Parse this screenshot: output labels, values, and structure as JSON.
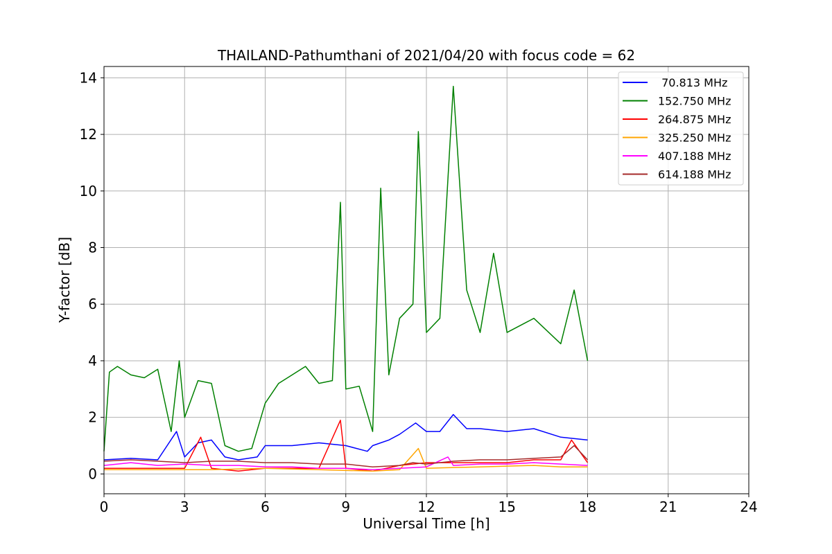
{
  "chart_data": {
    "type": "line",
    "title": "THAILAND-Pathumthani of 2021/04/20 with focus code = 62",
    "xlabel": "Universal Time [h]",
    "ylabel": "Y-factor [dB]",
    "xlim": [
      0,
      24
    ],
    "ylim": [
      -0.7,
      14.4
    ],
    "xticks": [
      0,
      3,
      6,
      9,
      12,
      15,
      18,
      21,
      24
    ],
    "yticks": [
      0,
      2,
      4,
      6,
      8,
      10,
      12,
      14
    ],
    "grid": true,
    "legend_position": "top-right",
    "series": [
      {
        "name": " 70.813 MHz",
        "color": "#0000ff",
        "points": [
          [
            0,
            0.5
          ],
          [
            1,
            0.55
          ],
          [
            2,
            0.5
          ],
          [
            2.7,
            1.5
          ],
          [
            3,
            0.6
          ],
          [
            3.5,
            1.1
          ],
          [
            4,
            1.2
          ],
          [
            4.5,
            0.6
          ],
          [
            5,
            0.5
          ],
          [
            5.7,
            0.6
          ],
          [
            6,
            1.0
          ],
          [
            7,
            1.0
          ],
          [
            8,
            1.1
          ],
          [
            9,
            1.0
          ],
          [
            9.8,
            0.8
          ],
          [
            10,
            1.0
          ],
          [
            10.6,
            1.2
          ],
          [
            11,
            1.4
          ],
          [
            11.6,
            1.8
          ],
          [
            12,
            1.5
          ],
          [
            12.5,
            1.5
          ],
          [
            13,
            2.1
          ],
          [
            13.5,
            1.6
          ],
          [
            14,
            1.6
          ],
          [
            15,
            1.5
          ],
          [
            16,
            1.6
          ],
          [
            17,
            1.3
          ],
          [
            18,
            1.2
          ]
        ]
      },
      {
        "name": "152.750 MHz",
        "color": "#008000",
        "points": [
          [
            0,
            0.8
          ],
          [
            0.2,
            3.6
          ],
          [
            0.5,
            3.8
          ],
          [
            1,
            3.5
          ],
          [
            1.5,
            3.4
          ],
          [
            2,
            3.7
          ],
          [
            2.5,
            1.5
          ],
          [
            2.8,
            4.0
          ],
          [
            3,
            2.0
          ],
          [
            3.5,
            3.3
          ],
          [
            4,
            3.2
          ],
          [
            4.5,
            1.0
          ],
          [
            5,
            0.8
          ],
          [
            5.5,
            0.9
          ],
          [
            6,
            2.5
          ],
          [
            6.5,
            3.2
          ],
          [
            7,
            3.5
          ],
          [
            7.5,
            3.8
          ],
          [
            8,
            3.2
          ],
          [
            8.5,
            3.3
          ],
          [
            8.8,
            9.6
          ],
          [
            9,
            3.0
          ],
          [
            9.5,
            3.1
          ],
          [
            10,
            1.5
          ],
          [
            10.3,
            10.1
          ],
          [
            10.6,
            3.5
          ],
          [
            11,
            5.5
          ],
          [
            11.5,
            6.0
          ],
          [
            11.7,
            12.1
          ],
          [
            12,
            5.0
          ],
          [
            12.5,
            5.5
          ],
          [
            13,
            13.7
          ],
          [
            13.5,
            6.5
          ],
          [
            14,
            5.0
          ],
          [
            14.5,
            7.8
          ],
          [
            15,
            5.0
          ],
          [
            16,
            5.5
          ],
          [
            17,
            4.6
          ],
          [
            17.5,
            6.5
          ],
          [
            18,
            4.0
          ]
        ]
      },
      {
        "name": "264.875 MHz",
        "color": "#ff0000",
        "points": [
          [
            0,
            0.2
          ],
          [
            1,
            0.2
          ],
          [
            2,
            0.2
          ],
          [
            3,
            0.2
          ],
          [
            3.6,
            1.3
          ],
          [
            4,
            0.2
          ],
          [
            5,
            0.1
          ],
          [
            6,
            0.2
          ],
          [
            7,
            0.2
          ],
          [
            8,
            0.2
          ],
          [
            8.8,
            1.9
          ],
          [
            9,
            0.2
          ],
          [
            10,
            0.1
          ],
          [
            11,
            0.3
          ],
          [
            12,
            0.4
          ],
          [
            13,
            0.4
          ],
          [
            14,
            0.4
          ],
          [
            15,
            0.4
          ],
          [
            16,
            0.5
          ],
          [
            17,
            0.5
          ],
          [
            17.4,
            1.2
          ],
          [
            18,
            0.4
          ]
        ]
      },
      {
        "name": "325.250 MHz",
        "color": "#ffa500",
        "points": [
          [
            0,
            0.15
          ],
          [
            2,
            0.15
          ],
          [
            4,
            0.15
          ],
          [
            6,
            0.2
          ],
          [
            8,
            0.15
          ],
          [
            10,
            0.1
          ],
          [
            11,
            0.15
          ],
          [
            11.7,
            0.9
          ],
          [
            12,
            0.2
          ],
          [
            14,
            0.25
          ],
          [
            16,
            0.3
          ],
          [
            17,
            0.25
          ],
          [
            18,
            0.25
          ]
        ]
      },
      {
        "name": "407.188 MHz",
        "color": "#ff00ff",
        "points": [
          [
            0,
            0.3
          ],
          [
            1,
            0.4
          ],
          [
            2,
            0.3
          ],
          [
            3,
            0.35
          ],
          [
            4,
            0.3
          ],
          [
            5,
            0.3
          ],
          [
            6,
            0.25
          ],
          [
            7,
            0.25
          ],
          [
            8,
            0.2
          ],
          [
            9,
            0.2
          ],
          [
            10,
            0.15
          ],
          [
            11,
            0.2
          ],
          [
            12,
            0.25
          ],
          [
            12.8,
            0.6
          ],
          [
            13,
            0.3
          ],
          [
            14,
            0.35
          ],
          [
            15,
            0.35
          ],
          [
            16,
            0.4
          ],
          [
            17,
            0.35
          ],
          [
            18,
            0.3
          ]
        ]
      },
      {
        "name": "614.188 MHz",
        "color": "#a52a2a",
        "points": [
          [
            0,
            0.45
          ],
          [
            1,
            0.5
          ],
          [
            2,
            0.45
          ],
          [
            3,
            0.4
          ],
          [
            4,
            0.45
          ],
          [
            5,
            0.45
          ],
          [
            6,
            0.4
          ],
          [
            7,
            0.4
          ],
          [
            8,
            0.35
          ],
          [
            9,
            0.35
          ],
          [
            10,
            0.25
          ],
          [
            11,
            0.3
          ],
          [
            11.5,
            0.4
          ],
          [
            12,
            0.35
          ],
          [
            13,
            0.45
          ],
          [
            14,
            0.5
          ],
          [
            15,
            0.5
          ],
          [
            16,
            0.55
          ],
          [
            17,
            0.6
          ],
          [
            17.5,
            1.0
          ],
          [
            18,
            0.5
          ]
        ]
      }
    ]
  }
}
